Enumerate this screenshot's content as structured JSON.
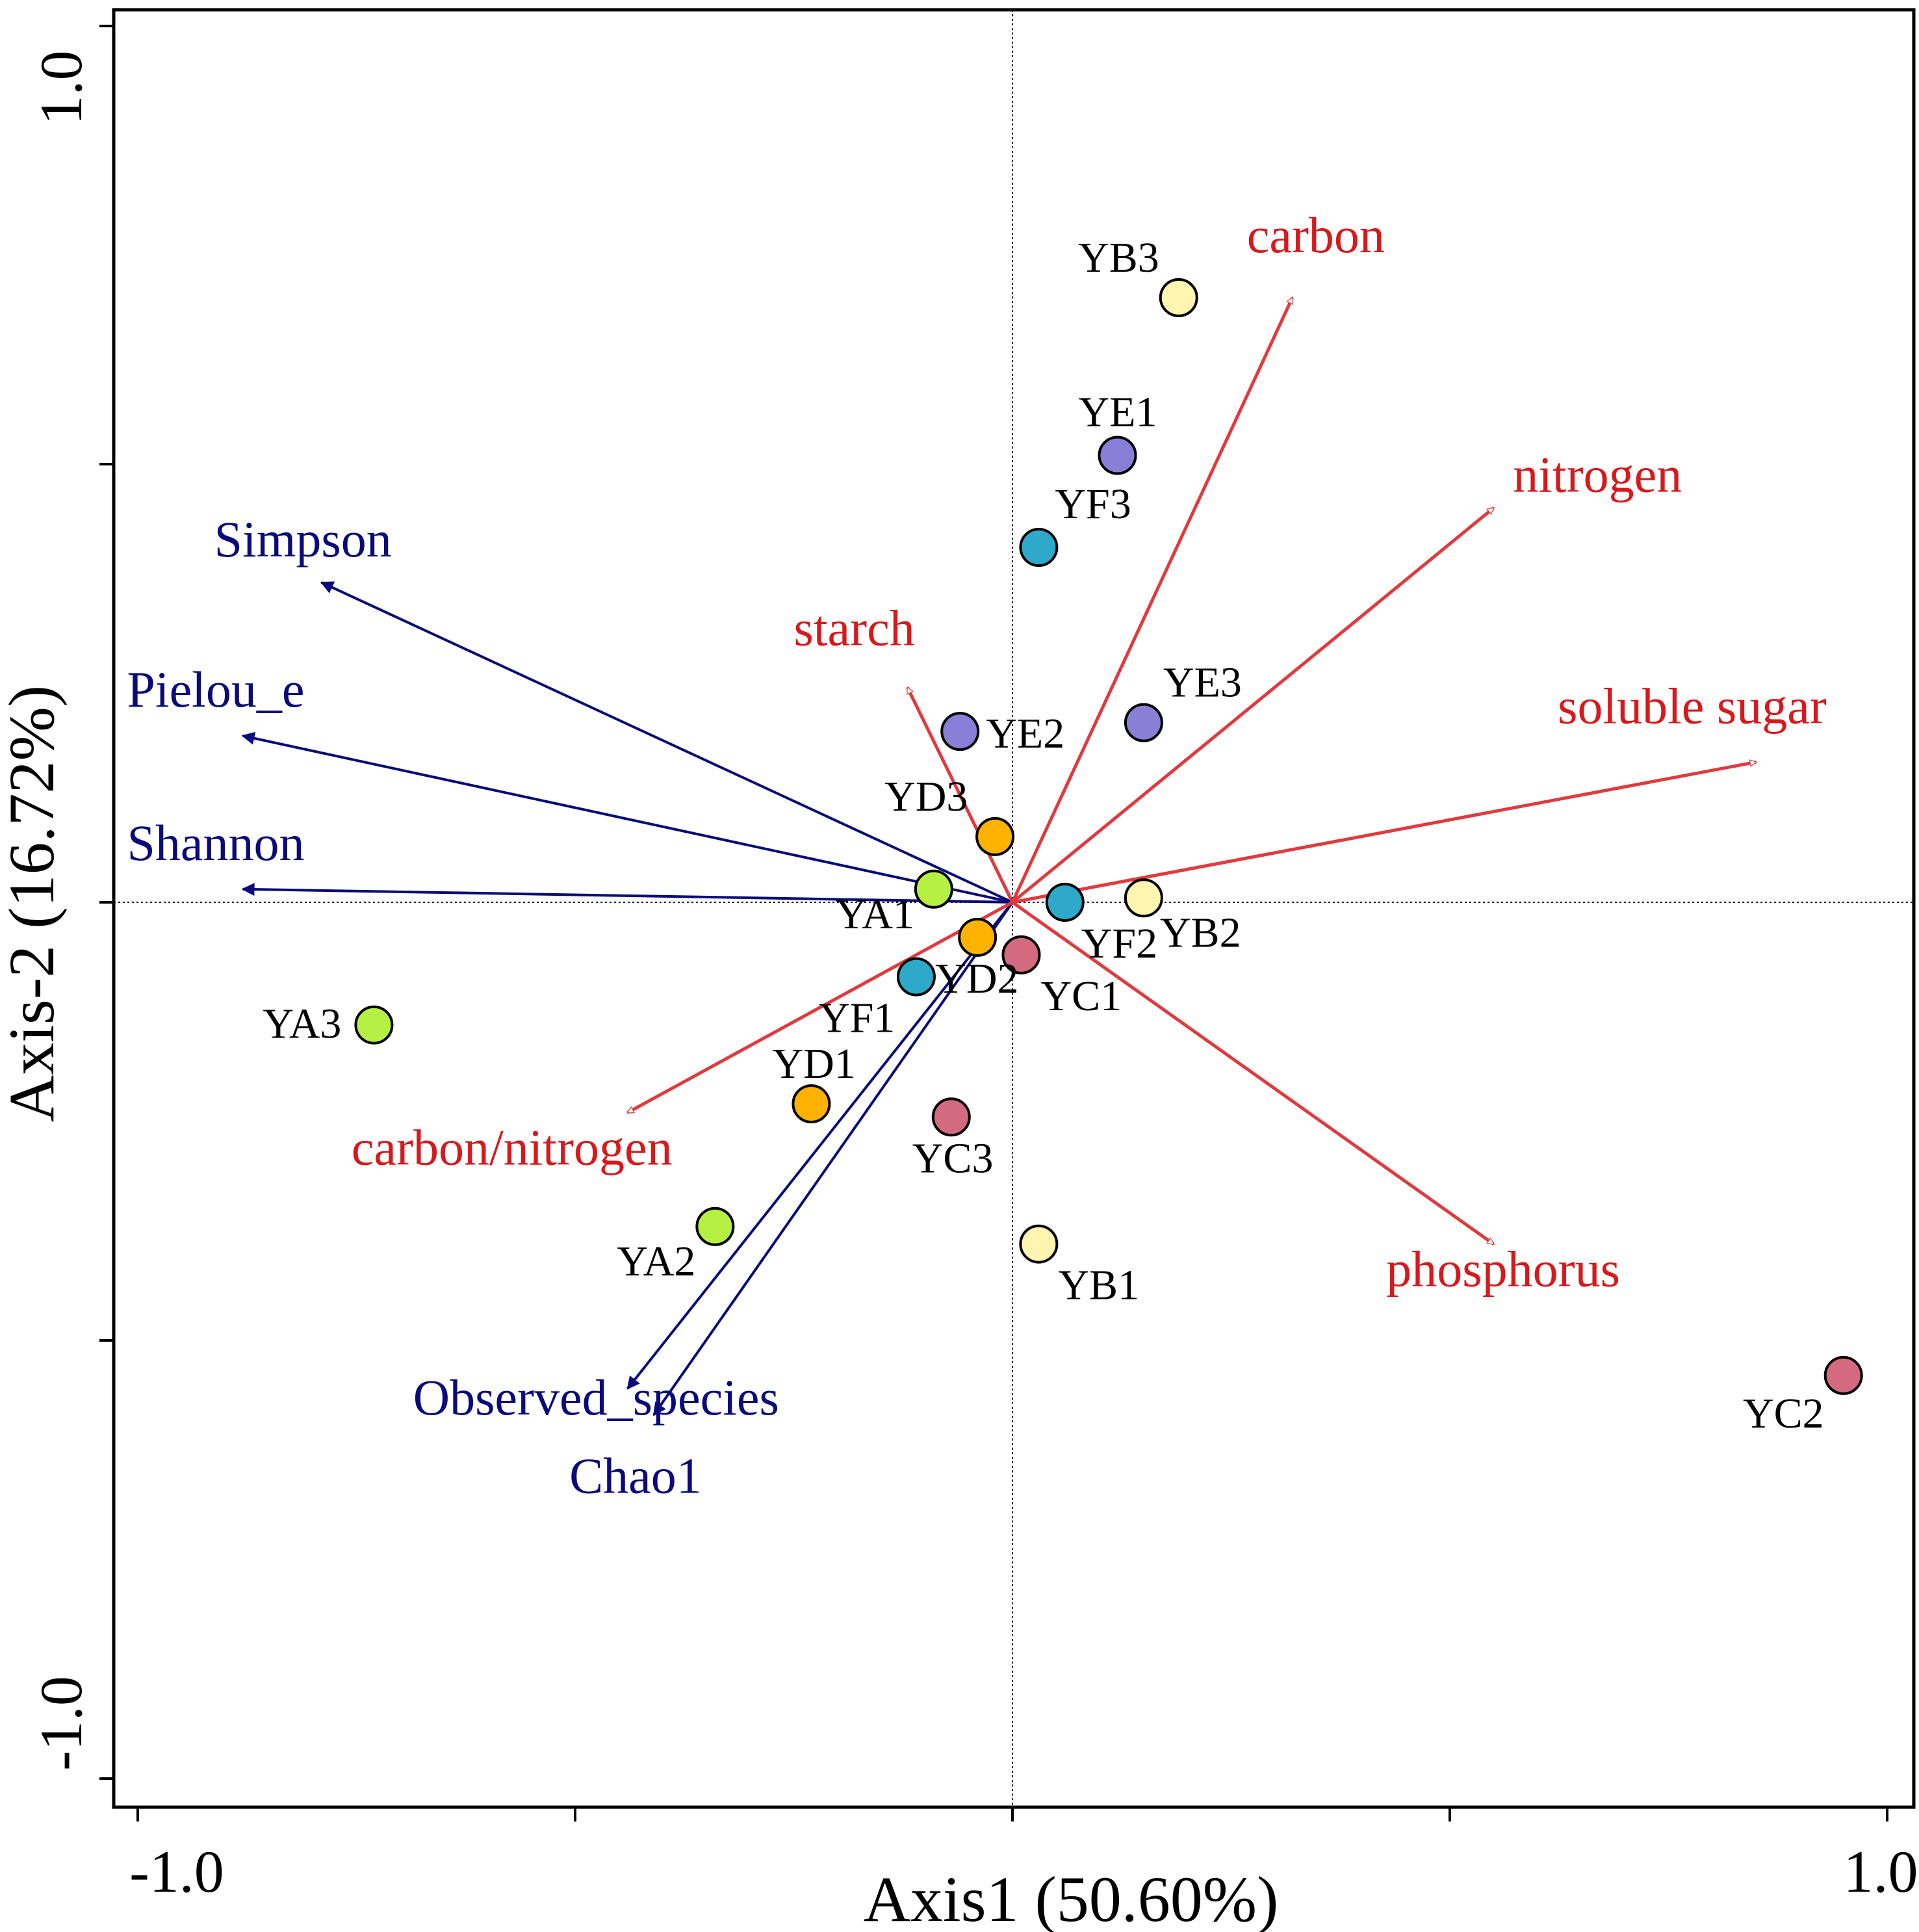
{
  "chart_data": {
    "type": "scatter",
    "subtype": "RDA biplot",
    "title": "",
    "xlabel": "Axis1 (50.60%)",
    "ylabel": "Axis-2 (16.72%)",
    "xlim": [
      -1.0,
      1.0
    ],
    "ylim": [
      -1.0,
      1.0
    ],
    "x_tick_labels": [
      "-1.0",
      "1.0"
    ],
    "y_tick_labels": [
      "1.0",
      "-1.0"
    ],
    "x_ticks": [
      -1.0,
      -0.5,
      0,
      0.5,
      1.0
    ],
    "y_ticks": [
      1.0,
      0.5,
      0,
      -0.5,
      -1.0
    ],
    "grid": false,
    "colors": {
      "env_arrow": "#e03a3e",
      "env_text": "#d7191c",
      "diversity_arrow": "#0a0a7a",
      "diversity_text": "#0a0a7a",
      "group_A": "#b5f042",
      "group_B": "#fff5b0",
      "group_C": "#d46a80",
      "group_D": "#ffb300",
      "group_E": "#8a7fd6",
      "group_F": "#2ea9c9"
    },
    "samples": [
      {
        "label": "YA1",
        "group": "A",
        "x": -0.09,
        "y": 0.015
      },
      {
        "label": "YA2",
        "group": "A",
        "x": -0.34,
        "y": -0.37
      },
      {
        "label": "YA3",
        "group": "A",
        "x": -0.73,
        "y": -0.14
      },
      {
        "label": "YB1",
        "group": "B",
        "x": 0.03,
        "y": -0.39
      },
      {
        "label": "YB2",
        "group": "B",
        "x": 0.15,
        "y": 0.005
      },
      {
        "label": "YB3",
        "group": "B",
        "x": 0.19,
        "y": 0.69
      },
      {
        "label": "YC1",
        "group": "C",
        "x": 0.01,
        "y": -0.06
      },
      {
        "label": "YC2",
        "group": "C",
        "x": 0.95,
        "y": -0.54
      },
      {
        "label": "YC3",
        "group": "C",
        "x": -0.07,
        "y": -0.245
      },
      {
        "label": "YD1",
        "group": "D",
        "x": -0.23,
        "y": -0.23
      },
      {
        "label": "YD2",
        "group": "D",
        "x": -0.04,
        "y": -0.04
      },
      {
        "label": "YD3",
        "group": "D",
        "x": -0.02,
        "y": 0.075
      },
      {
        "label": "YE1",
        "group": "E",
        "x": 0.12,
        "y": 0.51
      },
      {
        "label": "YE2",
        "group": "E",
        "x": -0.06,
        "y": 0.195
      },
      {
        "label": "YE3",
        "group": "E",
        "x": 0.15,
        "y": 0.205
      },
      {
        "label": "YF1",
        "group": "F",
        "x": -0.11,
        "y": -0.085
      },
      {
        "label": "YF2",
        "group": "F",
        "x": 0.06,
        "y": 0.0
      },
      {
        "label": "YF3",
        "group": "F",
        "x": 0.03,
        "y": 0.405
      }
    ],
    "environmental_vectors": [
      {
        "name": "carbon",
        "x": 0.32,
        "y": 0.69
      },
      {
        "name": "nitrogen",
        "x": 0.55,
        "y": 0.45
      },
      {
        "name": "starch",
        "x": -0.12,
        "y": 0.245
      },
      {
        "name": "soluble sugar",
        "x": 0.85,
        "y": 0.16
      },
      {
        "name": "carbon/nitrogen",
        "x": -0.44,
        "y": -0.24
      },
      {
        "name": "phosphorus",
        "x": 0.55,
        "y": -0.39
      }
    ],
    "diversity_vectors": [
      {
        "name": "Simpson",
        "x": -0.79,
        "y": 0.365
      },
      {
        "name": "Pielou_e",
        "x": -0.88,
        "y": 0.19
      },
      {
        "name": "Shannon",
        "x": -0.88,
        "y": 0.015
      },
      {
        "name": "Observed_species",
        "x": -0.44,
        "y": -0.555
      },
      {
        "name": "Chao1",
        "x": -0.41,
        "y": -0.585
      }
    ]
  }
}
